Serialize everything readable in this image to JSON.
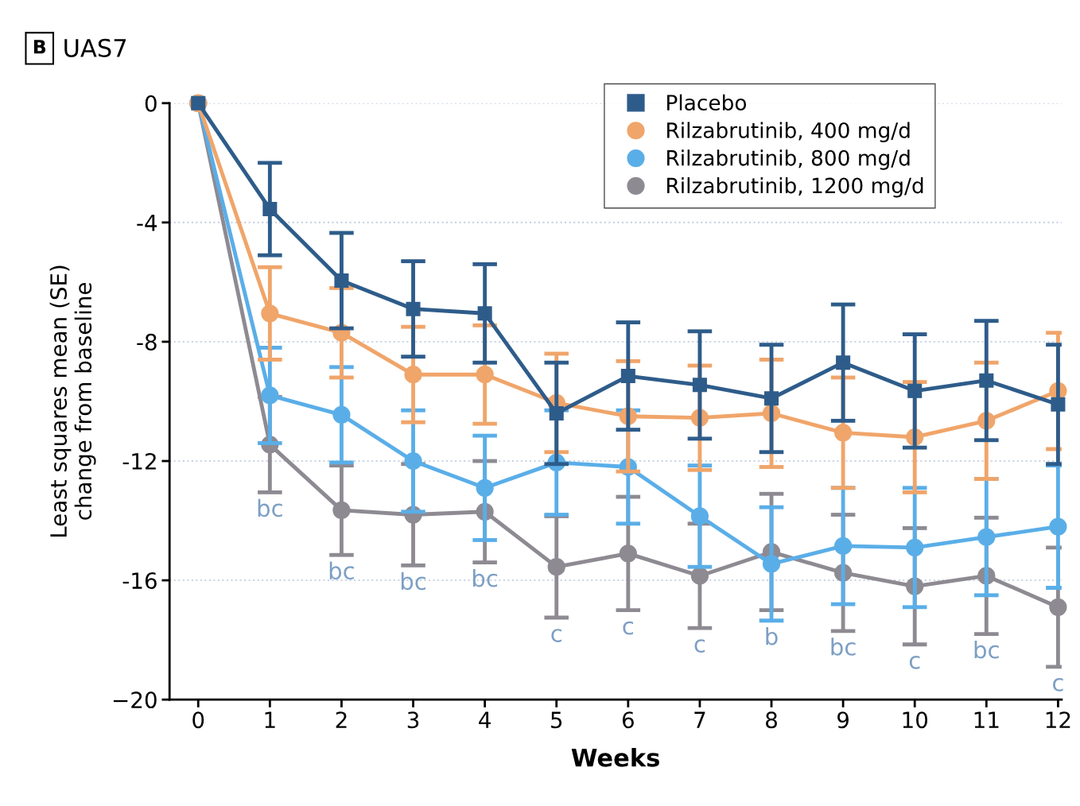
{
  "chart_data": {
    "type": "line",
    "title": "UAS7",
    "xlabel": "Weeks",
    "ylabel": "Least squares mean (SE)\nchange from baseline",
    "x": [
      0,
      1,
      2,
      3,
      4,
      5,
      6,
      7,
      8,
      9,
      10,
      11,
      12
    ],
    "xlim": [
      -0.4,
      12.05
    ],
    "xticks": [
      0,
      1,
      2,
      3,
      4,
      5,
      6,
      7,
      8,
      9,
      10,
      11,
      12
    ],
    "ylim": [
      -20,
      0
    ],
    "yticks": [
      {
        "value": -20,
        "label": "−20"
      },
      {
        "value": -16,
        "label": "-16"
      },
      {
        "value": -12,
        "label": "-12"
      },
      {
        "value": -8,
        "label": "-8"
      },
      {
        "value": -4,
        "label": "-4"
      },
      0
    ],
    "grid": "y",
    "legend": "top right",
    "series": [
      {
        "name": "Placebo",
        "color": "#2e5c8a",
        "marker": "square",
        "values": [
          0,
          -3.55,
          -5.95,
          -6.9,
          -7.05,
          -10.4,
          -9.15,
          -9.45,
          -9.9,
          -8.7,
          -9.65,
          -9.3,
          -10.1
        ],
        "errors": [
          null,
          1.55,
          1.6,
          1.6,
          1.65,
          1.7,
          1.8,
          1.8,
          1.8,
          1.95,
          1.9,
          2.0,
          2.0
        ]
      },
      {
        "name": "Rilzabrutinib, 400 mg/d",
        "color": "#f0a56a",
        "marker": "circle",
        "values": [
          0,
          -7.05,
          -7.7,
          -9.1,
          -9.1,
          -10.05,
          -10.5,
          -10.55,
          -10.4,
          -11.05,
          -11.2,
          -10.65,
          -9.65
        ],
        "errors": [
          null,
          1.55,
          1.5,
          1.6,
          1.65,
          1.65,
          1.85,
          1.75,
          1.8,
          1.85,
          1.85,
          1.95,
          1.95
        ]
      },
      {
        "name": "Rilzabrutinib, 800 mg/d",
        "color": "#5aaee8",
        "marker": "circle",
        "values": [
          0,
          -9.8,
          -10.45,
          -12.0,
          -12.9,
          -12.05,
          -12.2,
          -13.85,
          -15.45,
          -14.85,
          -14.9,
          -14.55,
          -14.2
        ],
        "errors": [
          null,
          1.6,
          1.6,
          1.7,
          1.75,
          1.75,
          1.9,
          1.7,
          1.9,
          1.95,
          2.0,
          1.95,
          2.05
        ]
      },
      {
        "name": "Rilzabrutinib, 1200 mg/d",
        "color": "#8e8a92",
        "marker": "circle",
        "values": [
          0,
          -11.45,
          -13.65,
          -13.8,
          -13.7,
          -15.55,
          -15.1,
          -15.85,
          -15.05,
          -15.75,
          -16.2,
          -15.85,
          -16.9
        ],
        "errors": [
          null,
          1.6,
          1.5,
          1.7,
          1.7,
          1.7,
          1.9,
          1.75,
          1.95,
          1.95,
          1.95,
          1.95,
          2.0
        ]
      }
    ],
    "annotations": [
      "B",
      {
        "text": "bc",
        "x": 1,
        "y": -13.05
      },
      {
        "text": "bc",
        "x": 2,
        "y": -15.15
      },
      {
        "text": "bc",
        "x": 3,
        "y": -15.5
      },
      {
        "text": "bc",
        "x": 4,
        "y": -15.4
      },
      {
        "text": "c",
        "x": 5,
        "y": -17.25
      },
      {
        "text": "c",
        "x": 6,
        "y": -17.0
      },
      {
        "text": "c",
        "x": 7,
        "y": -17.6
      },
      {
        "text": "b",
        "x": 8,
        "y": -17.35
      },
      {
        "text": "bc",
        "x": 9,
        "y": -17.7
      },
      {
        "text": "c",
        "x": 10,
        "y": -18.15
      },
      {
        "text": "bc",
        "x": 11,
        "y": -17.8
      },
      {
        "text": "c",
        "x": 12,
        "y": -18.9
      }
    ]
  }
}
